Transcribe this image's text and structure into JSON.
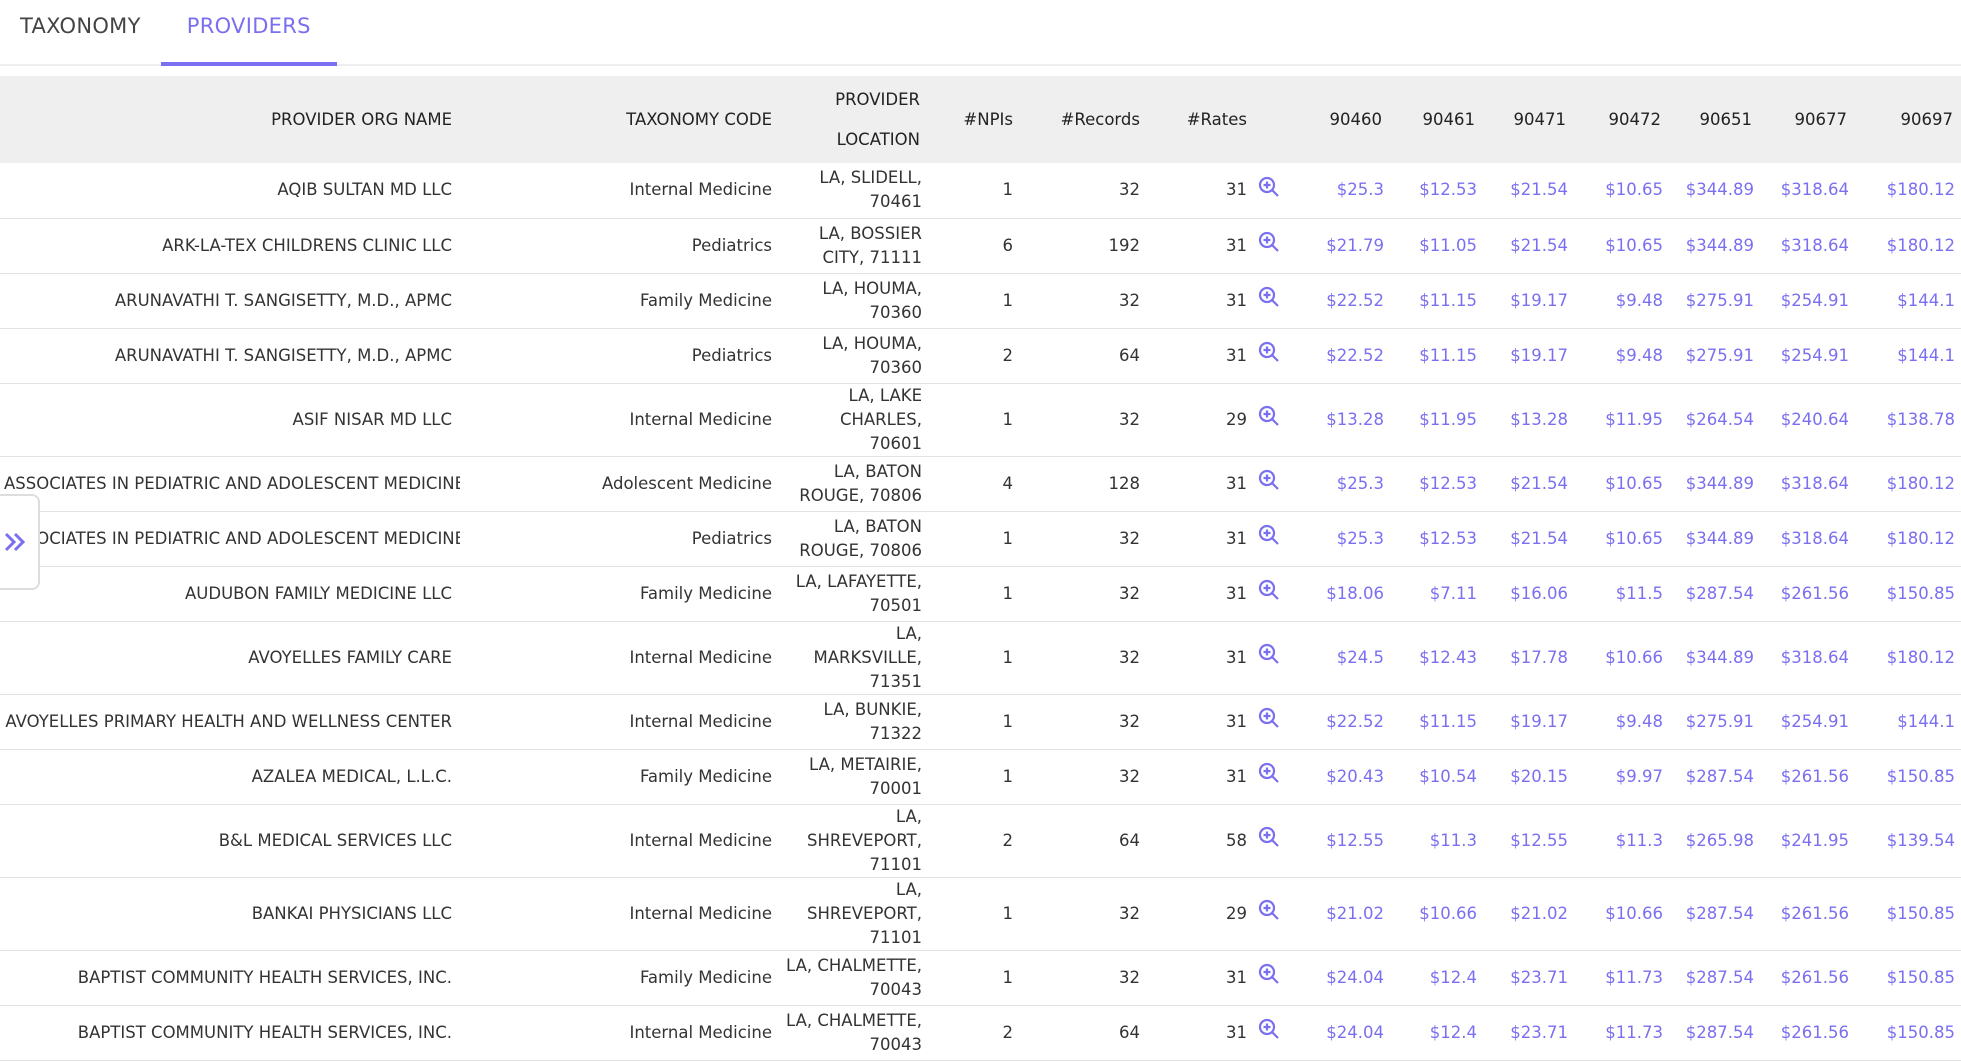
{
  "tabs": [
    "TAXONOMY",
    "PROVIDERS"
  ],
  "table": {
    "columns": [
      "PROVIDER ORG NAME",
      "TAXONOMY CODE",
      "PROVIDER LOCATION",
      "#NPIs",
      "#Records",
      "#Rates",
      "90460",
      "90461",
      "90471",
      "90472",
      "90651",
      "90677",
      "90697"
    ],
    "rows": [
      [
        "AQIB SULTAN MD LLC",
        "Internal Medicine",
        "LA, SLIDELL, 70461",
        1,
        32,
        31,
        "$25.3",
        "$12.53",
        "$21.54",
        "$10.65",
        "$344.89",
        "$318.64",
        "$180.12"
      ],
      [
        "ARK-LA-TEX CHILDRENS CLINIC LLC",
        "Pediatrics",
        "LA, BOSSIER CITY, 71111",
        6,
        192,
        31,
        "$21.79",
        "$11.05",
        "$21.54",
        "$10.65",
        "$344.89",
        "$318.64",
        "$180.12"
      ],
      [
        "ARUNAVATHI T. SANGISETTY, M.D., APMC",
        "Family Medicine",
        "LA, HOUMA, 70360",
        1,
        32,
        31,
        "$22.52",
        "$11.15",
        "$19.17",
        "$9.48",
        "$275.91",
        "$254.91",
        "$144.1"
      ],
      [
        "ARUNAVATHI T. SANGISETTY, M.D., APMC",
        "Pediatrics",
        "LA, HOUMA, 70360",
        2,
        64,
        31,
        "$22.52",
        "$11.15",
        "$19.17",
        "$9.48",
        "$275.91",
        "$254.91",
        "$144.1"
      ],
      [
        "ASIF NISAR MD LLC",
        "Internal Medicine",
        "LA, LAKE CHARLES, 70601",
        1,
        32,
        29,
        "$13.28",
        "$11.95",
        "$13.28",
        "$11.95",
        "$264.54",
        "$240.64",
        "$138.78"
      ],
      [
        "ASSOCIATES IN PEDIATRIC AND ADOLESCENT MEDICINE",
        "Adolescent Medicine",
        "LA, BATON ROUGE, 70806",
        4,
        128,
        31,
        "$25.3",
        "$12.53",
        "$21.54",
        "$10.65",
        "$344.89",
        "$318.64",
        "$180.12"
      ],
      [
        "ASSOCIATES IN PEDIATRIC AND ADOLESCENT MEDICINE",
        "Pediatrics",
        "LA, BATON ROUGE, 70806",
        1,
        32,
        31,
        "$25.3",
        "$12.53",
        "$21.54",
        "$10.65",
        "$344.89",
        "$318.64",
        "$180.12"
      ],
      [
        "AUDUBON FAMILY MEDICINE LLC",
        "Family Medicine",
        "LA, LAFAYETTE, 70501",
        1,
        32,
        31,
        "$18.06",
        "$7.11",
        "$16.06",
        "$11.5",
        "$287.54",
        "$261.56",
        "$150.85"
      ],
      [
        "AVOYELLES FAMILY CARE",
        "Internal Medicine",
        "LA, MARKSVILLE, 71351",
        1,
        32,
        31,
        "$24.5",
        "$12.43",
        "$17.78",
        "$10.66",
        "$344.89",
        "$318.64",
        "$180.12"
      ],
      [
        "AVOYELLES PRIMARY HEALTH AND WELLNESS CENTER",
        "Internal Medicine",
        "LA, BUNKIE, 71322",
        1,
        32,
        31,
        "$22.52",
        "$11.15",
        "$19.17",
        "$9.48",
        "$275.91",
        "$254.91",
        "$144.1"
      ],
      [
        "AZALEA MEDICAL, L.L.C.",
        "Family Medicine",
        "LA, METAIRIE, 70001",
        1,
        32,
        31,
        "$20.43",
        "$10.54",
        "$20.15",
        "$9.97",
        "$287.54",
        "$261.56",
        "$150.85"
      ],
      [
        "B&L MEDICAL SERVICES LLC",
        "Internal Medicine",
        "LA, SHREVEPORT, 71101",
        2,
        64,
        58,
        "$12.55",
        "$11.3",
        "$12.55",
        "$11.3",
        "$265.98",
        "$241.95",
        "$139.54"
      ],
      [
        "BANKAI PHYSICIANS LLC",
        "Internal Medicine",
        "LA, SHREVEPORT, 71101",
        1,
        32,
        29,
        "$21.02",
        "$10.66",
        "$21.02",
        "$10.66",
        "$287.54",
        "$261.56",
        "$150.85"
      ],
      [
        "BAPTIST COMMUNITY HEALTH SERVICES, INC.",
        "Family Medicine",
        "LA, CHALMETTE, 70043",
        1,
        32,
        31,
        "$24.04",
        "$12.4",
        "$23.71",
        "$11.73",
        "$287.54",
        "$261.56",
        "$150.85"
      ],
      [
        "BAPTIST COMMUNITY HEALTH SERVICES, INC.",
        "Internal Medicine",
        "LA, CHALMETTE, 70043",
        2,
        64,
        31,
        "$24.04",
        "$12.4",
        "$23.71",
        "$11.73",
        "$287.54",
        "$261.56",
        "$150.85"
      ]
    ]
  }
}
